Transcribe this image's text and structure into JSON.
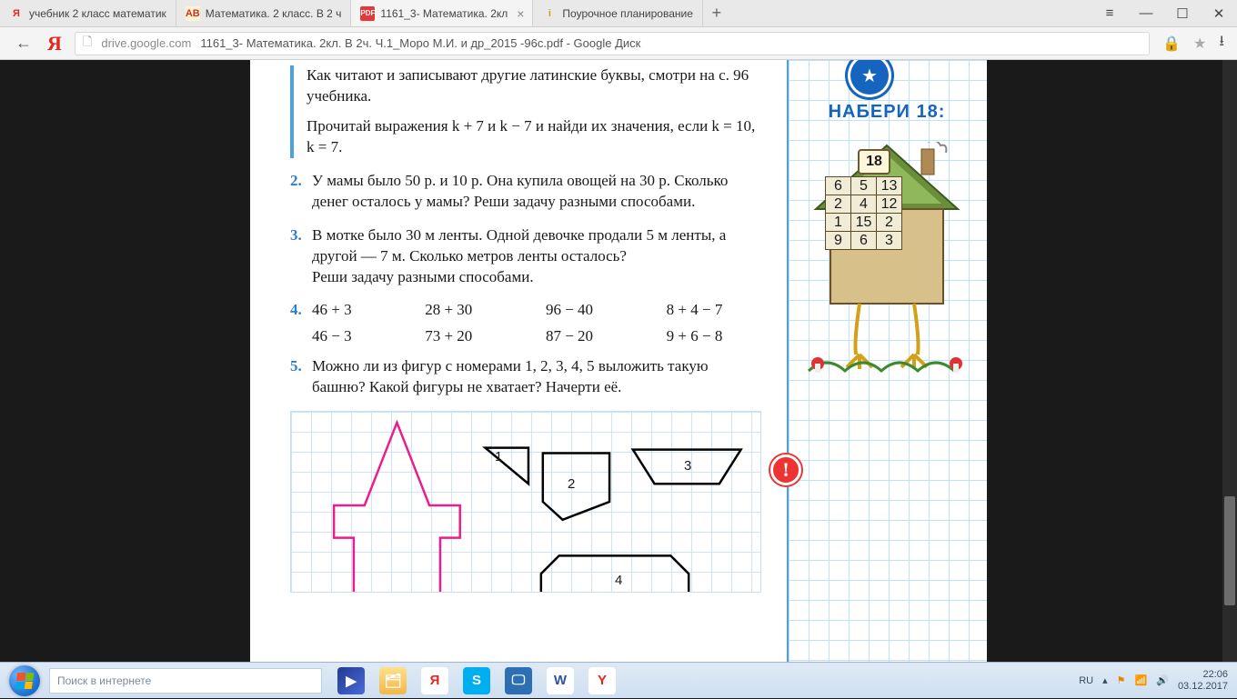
{
  "tabs": [
    {
      "favicon": "y",
      "title": "учебник 2 класс математик"
    },
    {
      "favicon": "ab",
      "title": "Математика. 2 класс. В 2 ч"
    },
    {
      "favicon": "pdf",
      "title": "1161_3- Математика. 2кл",
      "active": true,
      "closable": true
    },
    {
      "favicon": "i",
      "title": "Поурочное планирование"
    }
  ],
  "window_controls": {
    "menu": "≡",
    "minimize": "—",
    "maximize": "☐",
    "close": "✕"
  },
  "addressbar": {
    "back": "←",
    "logo": "Я",
    "lock": "🗋",
    "host": "drive.google.com",
    "title": "1161_3- Математика. 2кл. В 2ч. Ч.1_Моро М.И. и др_2015 -96c.pdf - Google Диск",
    "secure_icon": "🔒",
    "star": "★",
    "download": "⭳"
  },
  "document": {
    "intro1": "Как читают и записывают другие латинские бук­вы, смотри на с. 96 учебника.",
    "intro2": "Прочитай выражения k + 7 и k − 7 и найди их значения, если k = 10, k = 7.",
    "problems": {
      "2": "У мамы было 50 р. и 10 р. Она купила ово­щей на 30 р. Сколько денег осталось у мамы? Реши задачу разными способами.",
      "3": "В мотке было 30 м ленты. Одной девочке продали 5 м ленты, а другой — 7 м. Сколько метров ленты осталось?\nРеши задачу разными способами.",
      "5": "Можно ли из фигур с номерами 1, 2, 3, 4, 5 выложить такую башню? Какой фигуры не хва­тает? Начерти её."
    },
    "p4_expressions": [
      [
        "46 + 3",
        "28 + 30",
        "96 − 40",
        "8 + 4 − 7"
      ],
      [
        "46 − 3",
        "73 + 20",
        "87 − 20",
        "9 + 6 − 8"
      ]
    ],
    "geometry": {
      "grid_color": "#cfe3f5",
      "tower_color": "#e91e8c",
      "shapes_color": "#000000",
      "labels": [
        "1",
        "2",
        "3",
        "4"
      ]
    },
    "sidebar": {
      "title": "НАБЕРИ 18:",
      "badge": "18",
      "table": [
        [
          "6",
          "5",
          "13"
        ],
        [
          "2",
          "4",
          "12"
        ],
        [
          "1",
          "15",
          "2"
        ],
        [
          "9",
          "6",
          "3"
        ]
      ],
      "alert": "!"
    }
  },
  "taskbar": {
    "search_placeholder": "Поиск в интернете",
    "apps": [
      {
        "name": "media-player",
        "bg": "linear-gradient(135deg,#233a8c,#4a6adf)",
        "glyph": "▶"
      },
      {
        "name": "explorer",
        "bg": "linear-gradient(#ffe08a,#f0b84a)",
        "glyph": "🗂"
      },
      {
        "name": "yandex",
        "bg": "#ffffff",
        "fg": "#e52620",
        "glyph": "Я"
      },
      {
        "name": "skype",
        "bg": "#00aff0",
        "glyph": "S"
      },
      {
        "name": "display",
        "bg": "#2e6fb3",
        "glyph": "🖵"
      },
      {
        "name": "word",
        "bg": "#ffffff",
        "fg": "#2b579a",
        "glyph": "W"
      },
      {
        "name": "ybrowser",
        "bg": "#ffffff",
        "fg": "#e52620",
        "glyph": "Y"
      }
    ],
    "tray": {
      "lang": "RU",
      "up": "▴",
      "flag": "⚑",
      "net": "📶",
      "vol": "🔊",
      "time": "22:06",
      "date": "03.12.2017"
    }
  }
}
